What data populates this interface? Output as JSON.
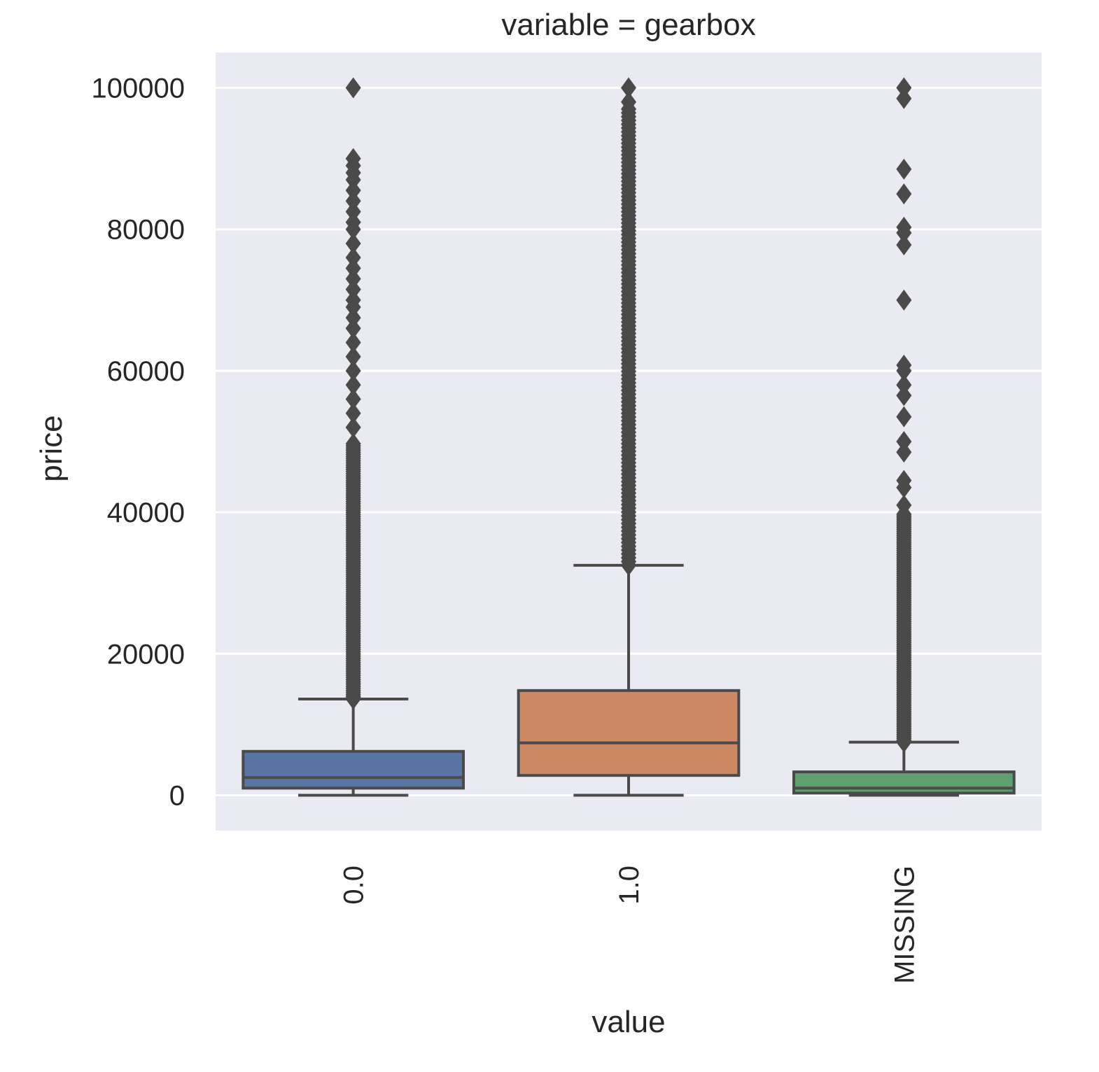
{
  "chart_data": {
    "type": "box",
    "title": "variable = gearbox",
    "xlabel": "value",
    "ylabel": "price",
    "ylim": [
      -5000,
      105000
    ],
    "yticks": [
      0,
      20000,
      40000,
      60000,
      80000,
      100000
    ],
    "ytick_labels": [
      "0",
      "20000",
      "40000",
      "60000",
      "80000",
      "100000"
    ],
    "grid": true,
    "categories": [
      "0.0",
      "1.0",
      "MISSING"
    ],
    "boxes": [
      {
        "category": "0.0",
        "color": "#5975a4",
        "whisker_low": 0,
        "q1": 1000,
        "median": 2500,
        "q3": 6200,
        "whisker_high": 13600,
        "outliers_dense_range": [
          13600,
          50000
        ],
        "outliers": [
          52000,
          54000,
          56000,
          58000,
          60000,
          62000,
          64000,
          66000,
          67500,
          69000,
          70000,
          71500,
          73000,
          74500,
          76000,
          78000,
          80000,
          81000,
          82500,
          84000,
          85500,
          87000,
          88000,
          89000,
          90000,
          100000
        ]
      },
      {
        "category": "1.0",
        "color": "#cc8963",
        "whisker_low": 0,
        "q1": 2800,
        "median": 7400,
        "q3": 14800,
        "whisker_high": 32500,
        "outliers_dense_range": [
          32500,
          97000
        ],
        "outliers": [
          98000,
          100000
        ]
      },
      {
        "category": "MISSING",
        "color": "#5f9e6e",
        "whisker_low": 0,
        "q1": 300,
        "median": 1000,
        "q3": 3300,
        "whisker_high": 7500,
        "outliers_dense_range": [
          7500,
          40000
        ],
        "outliers": [
          41000,
          43500,
          44500,
          48500,
          50000,
          53500,
          56500,
          58000,
          60000,
          60800,
          70000,
          77800,
          79500,
          80300,
          85000,
          88500,
          98500,
          100000
        ]
      }
    ]
  }
}
